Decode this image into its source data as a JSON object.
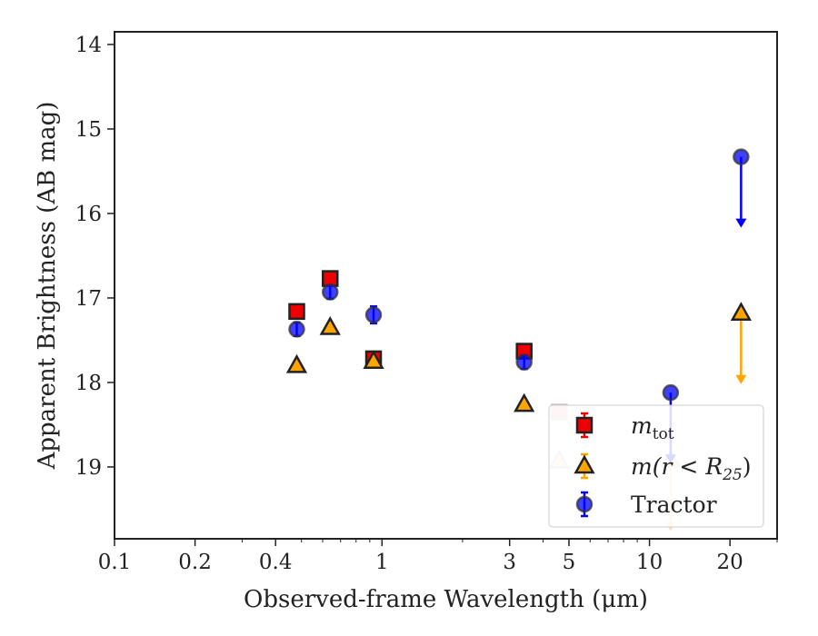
{
  "chart_data": {
    "type": "scatter",
    "xlabel": "Observed-frame Wavelength (μm)",
    "ylabel": "Apparent Brightness (AB mag)",
    "x_scale": "log",
    "xlim": [
      0.1,
      30
    ],
    "ylim": [
      19.85,
      13.85
    ],
    "y_inverted": true,
    "grid": false,
    "legend_position": "lower-right",
    "x_ticks": [
      {
        "value": 0.1,
        "label": "0.1"
      },
      {
        "value": 0.2,
        "label": "0.2"
      },
      {
        "value": 0.4,
        "label": "0.4"
      },
      {
        "value": 1,
        "label": "1"
      },
      {
        "value": 3,
        "label": "3"
      },
      {
        "value": 5,
        "label": "5"
      },
      {
        "value": 10,
        "label": "10"
      },
      {
        "value": 20,
        "label": "20"
      }
    ],
    "y_ticks": [
      {
        "value": 14,
        "label": "14"
      },
      {
        "value": 15,
        "label": "15"
      },
      {
        "value": 16,
        "label": "16"
      },
      {
        "value": 17,
        "label": "17"
      },
      {
        "value": 18,
        "label": "18"
      },
      {
        "value": 19,
        "label": "19"
      }
    ],
    "series": [
      {
        "name": "m_tot",
        "legend_main": "m",
        "legend_sub": "tot",
        "marker": "square",
        "color": "#ee0000",
        "points": [
          {
            "x": 0.48,
            "y": 17.16,
            "err": 0.05
          },
          {
            "x": 0.64,
            "y": 16.77,
            "err": 0.05
          },
          {
            "x": 0.93,
            "y": 17.72,
            "err": 0.05
          },
          {
            "x": 3.4,
            "y": 17.63,
            "err": 0.06
          },
          {
            "x": 4.6,
            "y": 18.35,
            "err": 0.08,
            "faded": true
          }
        ]
      },
      {
        "name": "m(r<R25)",
        "legend_main": "m(r < R",
        "legend_sub": "25",
        "legend_tail": ")",
        "marker": "triangle",
        "color": "#ffa500",
        "points": [
          {
            "x": 0.48,
            "y": 17.8
          },
          {
            "x": 0.64,
            "y": 17.35
          },
          {
            "x": 0.93,
            "y": 17.75
          },
          {
            "x": 3.4,
            "y": 18.26
          },
          {
            "x": 4.6,
            "y": 18.93,
            "faded": true
          },
          {
            "x": 12.0,
            "y": 18.92,
            "faded": true,
            "upper_limit": true
          },
          {
            "x": 22.0,
            "y": 17.18,
            "upper_limit": true
          }
        ]
      },
      {
        "name": "Tractor",
        "legend_main": "Tractor",
        "marker": "circle",
        "color": "#0000ff",
        "points": [
          {
            "x": 0.48,
            "y": 17.37,
            "err": 0.08
          },
          {
            "x": 0.64,
            "y": 16.93,
            "err": 0.08
          },
          {
            "x": 0.93,
            "y": 17.2,
            "err": 0.1
          },
          {
            "x": 3.4,
            "y": 17.76,
            "err": 0.08
          },
          {
            "x": 12.0,
            "y": 18.12,
            "upper_limit": true
          },
          {
            "x": 22.0,
            "y": 15.33,
            "upper_limit": true
          }
        ]
      }
    ]
  }
}
